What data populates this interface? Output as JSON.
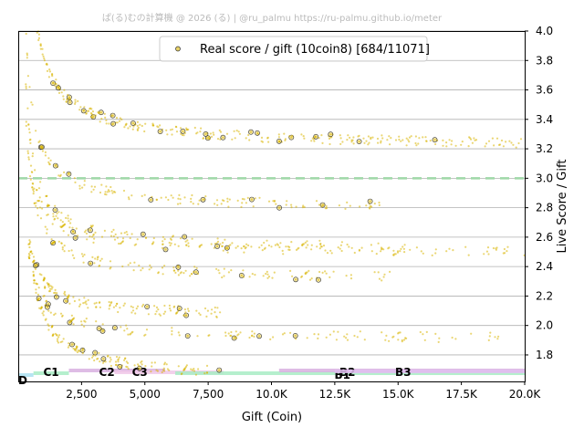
{
  "watermark": "ぱ(る)むの計算機 @ 2026 (る) | @ru_palmu  https://ru-palmu.github.io/meter",
  "chart_data": {
    "type": "scatter",
    "xlabel": "Gift (Coin)",
    "ylabel": "Live Score / Gift",
    "xlim": [
      0,
      20000
    ],
    "ylim": [
      1.62,
      4.0
    ],
    "x_ticks": [
      2500,
      5000,
      7500,
      10000,
      12500,
      15000,
      17500,
      20000
    ],
    "x_tick_labels": [
      "2,500",
      "5,000",
      "7,500",
      "10.0K",
      "12.5K",
      "15.0K",
      "17.5K",
      "20.0K"
    ],
    "y_ticks": [
      1.8,
      2.0,
      2.2,
      2.4,
      2.6,
      2.8,
      3.0,
      3.2,
      3.4,
      3.6,
      3.8,
      4.0
    ],
    "y_tick_labels": [
      "1.8",
      "2.0",
      "2.2",
      "2.4",
      "2.6",
      "2.8",
      "3.0",
      "3.2",
      "3.4",
      "3.6",
      "3.8",
      "4.0"
    ],
    "grid": "horizontal",
    "legend_position": "top",
    "reference_line": {
      "y": 3.0,
      "style": "dashed",
      "color": "#9fd8a8"
    },
    "series": [
      {
        "name": "Real score / gift (10coin8) [684/11071]",
        "marker_color": "#d9b400",
        "edge_color": "#333333",
        "highlighted_points": 684,
        "total_points": 11071,
        "curves": [
          {
            "a": 3.2,
            "b": 1.25,
            "x_start": 150,
            "x_end": 20000
          },
          {
            "a": 2.78,
            "b": 0.82,
            "x_start": 250,
            "x_end": 14500
          },
          {
            "a": 2.5,
            "b": 0.78,
            "x_start": 300,
            "x_end": 15500
          },
          {
            "a": 2.48,
            "b": 0.62,
            "x_start": 500,
            "x_end": 20000
          },
          {
            "a": 2.3,
            "b": 0.75,
            "x_start": 300,
            "x_end": 15000
          },
          {
            "a": 2.05,
            "b": 0.5,
            "x_start": 400,
            "x_end": 8000
          },
          {
            "a": 1.9,
            "b": 0.55,
            "x_start": 400,
            "x_end": 19000
          },
          {
            "a": 1.62,
            "b": 0.9,
            "x_start": 600,
            "x_end": 8000
          }
        ]
      }
    ],
    "rank_bands": [
      {
        "label": "D",
        "x0": 0,
        "x1": 600,
        "color": "#aadff0",
        "label_x": 0
      },
      {
        "label": "C1",
        "x0": 600,
        "x1": 2000,
        "color": "#a8ecc4",
        "label_x": 1300
      },
      {
        "label": "C2",
        "x0": 2000,
        "x1": 5800,
        "color": "#d8b0e0",
        "label_x": 3500
      },
      {
        "label": "C3",
        "x0": 3800,
        "x1": 8100,
        "color": "#f0c8e8",
        "label_x": 4800
      },
      {
        "label": "B1",
        "x0": 6200,
        "x1": 20000,
        "color": "#a8ecc4",
        "label_x": 12800
      },
      {
        "label": "B2",
        "x0": 10300,
        "x1": 20000,
        "color": "#d8b0e0",
        "label_x": 13000
      },
      {
        "label": "B3",
        "x0": 12500,
        "x1": 20000,
        "color": "#e0c0f0",
        "label_x": 15200
      }
    ]
  }
}
